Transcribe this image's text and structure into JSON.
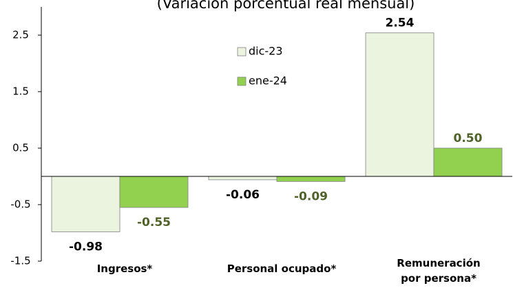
{
  "chart_data": {
    "type": "bar",
    "subtitle": "(Variación porcentual real mensual)",
    "categories": [
      "Ingresos*",
      "Personal ocupado*",
      "Remuneración\npor persona*"
    ],
    "series": [
      {
        "name": "dic-23",
        "color": "#ebf4df",
        "label_color": "#000000",
        "values": [
          -0.98,
          -0.06,
          2.54
        ],
        "value_labels": [
          "-0.98",
          "-0.06",
          "2.54"
        ]
      },
      {
        "name": "ene-24",
        "color": "#92d050",
        "label_color": "#4f6228",
        "values": [
          -0.55,
          -0.09,
          0.5
        ],
        "value_labels": [
          "-0.55",
          "-0.09",
          "0.50"
        ]
      }
    ],
    "ylim": [
      -1.5,
      3.0
    ],
    "yticks": [
      -1.5,
      -0.5,
      0.5,
      1.5,
      2.5
    ]
  }
}
